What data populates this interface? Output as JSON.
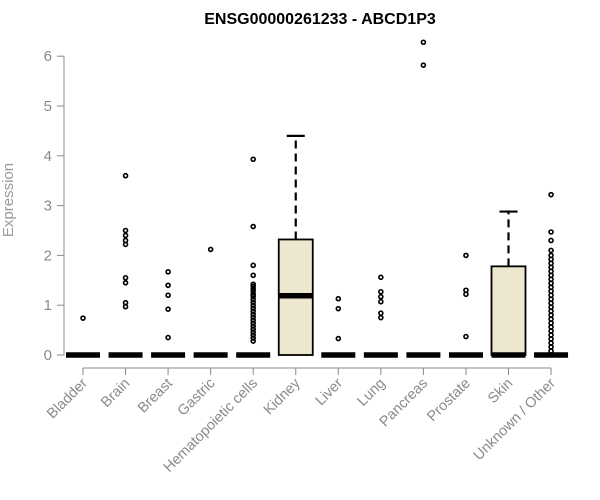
{
  "chart_data": {
    "type": "box",
    "title": "ENSG00000261233 - ABCD1P3",
    "xlabel": "",
    "ylabel": "Expression",
    "ylim": [
      0,
      6.3
    ],
    "yticks": [
      0,
      1,
      2,
      3,
      4,
      5,
      6
    ],
    "grid": false,
    "legend": "none",
    "colors": {
      "box_fill": "#ede7cf",
      "stroke": "#000000",
      "axis": "#8a8a8a"
    },
    "categories": [
      "Bladder",
      "Brain",
      "Breast",
      "Gastric",
      "Hematopoietic cells",
      "Kidney",
      "Liver",
      "Lung",
      "Pancreas",
      "Prostate",
      "Skin",
      "Unknown / Other"
    ],
    "boxes": [
      {
        "q1": 0,
        "median": 0,
        "q3": 0,
        "whisker_low": 0,
        "whisker_high": 0,
        "outliers": [
          0.74
        ]
      },
      {
        "q1": 0,
        "median": 0,
        "q3": 0,
        "whisker_low": 0,
        "whisker_high": 0,
        "outliers": [
          3.6,
          2.5,
          2.4,
          2.3,
          2.22,
          1.55,
          1.45,
          1.05,
          0.97
        ]
      },
      {
        "q1": 0,
        "median": 0,
        "q3": 0,
        "whisker_low": 0,
        "whisker_high": 0,
        "outliers": [
          1.67,
          1.4,
          1.2,
          0.92,
          0.35
        ]
      },
      {
        "q1": 0,
        "median": 0,
        "q3": 0,
        "whisker_low": 0,
        "whisker_high": 0,
        "outliers": [
          2.12
        ]
      },
      {
        "q1": 0,
        "median": 0,
        "q3": 0,
        "whisker_low": 0,
        "whisker_high": 0,
        "outliers": [
          3.93,
          2.58,
          1.8,
          1.6,
          1.42,
          1.38,
          1.33,
          1.28,
          1.22,
          1.18,
          1.12,
          1.06,
          1.0,
          0.94,
          0.88,
          0.82,
          0.76,
          0.7,
          0.64,
          0.58,
          0.52,
          0.46,
          0.4,
          0.34,
          0.28
        ]
      },
      {
        "q1": 0,
        "median": 1.19,
        "q3": 2.32,
        "whisker_low": 0,
        "whisker_high": 4.4,
        "outliers": []
      },
      {
        "q1": 0,
        "median": 0,
        "q3": 0,
        "whisker_low": 0,
        "whisker_high": 0,
        "outliers": [
          1.13,
          0.93,
          0.33
        ]
      },
      {
        "q1": 0,
        "median": 0,
        "q3": 0,
        "whisker_low": 0,
        "whisker_high": 0,
        "outliers": [
          1.56,
          1.27,
          1.17,
          1.07,
          0.84,
          0.75
        ]
      },
      {
        "q1": 0,
        "median": 0,
        "q3": 0,
        "whisker_low": 0,
        "whisker_high": 0,
        "outliers": [
          6.28,
          5.82
        ]
      },
      {
        "q1": 0,
        "median": 0,
        "q3": 0,
        "whisker_low": 0,
        "whisker_high": 0,
        "outliers": [
          2.0,
          1.3,
          1.22,
          0.37
        ]
      },
      {
        "q1": 0,
        "median": 0,
        "q3": 1.78,
        "whisker_low": 0,
        "whisker_high": 2.88,
        "outliers": []
      },
      {
        "q1": 0,
        "median": 0,
        "q3": 0,
        "whisker_low": 0,
        "whisker_high": 0,
        "outliers": [
          3.22,
          2.47,
          2.3,
          2.1,
          2.0,
          1.92,
          1.84,
          1.76,
          1.68,
          1.6,
          1.52,
          1.44,
          1.36,
          1.28,
          1.2,
          1.12,
          1.04,
          0.96,
          0.88,
          0.8,
          0.72,
          0.64,
          0.56,
          0.48,
          0.4,
          0.32,
          0.24,
          0.16,
          0.08
        ]
      }
    ]
  }
}
